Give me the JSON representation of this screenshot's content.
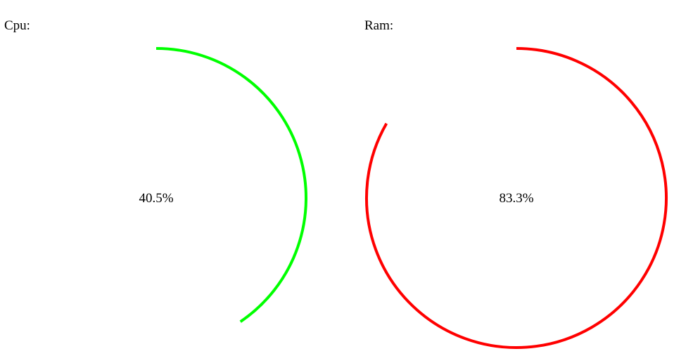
{
  "cpu": {
    "label": "Cpu:",
    "value_text": "40.5%",
    "fraction": 0.405,
    "color": "#00ff00"
  },
  "ram": {
    "label": "Ram:",
    "value_text": "83.3%",
    "fraction": 0.833,
    "color": "#ff0000"
  }
}
